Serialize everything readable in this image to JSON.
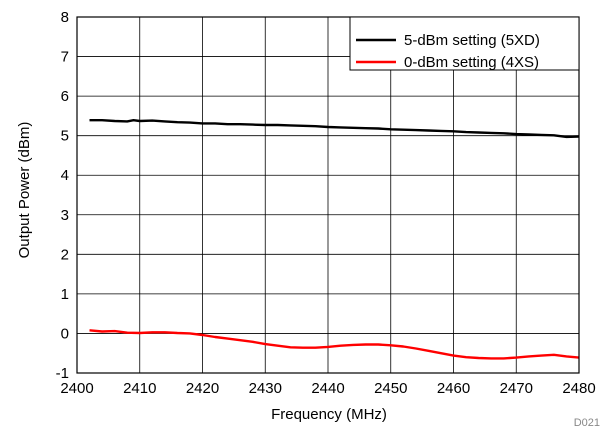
{
  "chart_data": {
    "type": "line",
    "title": "",
    "xlabel": "Frequency (MHz)",
    "ylabel": "Output Power (dBm)",
    "xlim": [
      2400,
      2480
    ],
    "ylim": [
      -1,
      8
    ],
    "x_ticks": [
      2400,
      2410,
      2420,
      2430,
      2440,
      2450,
      2460,
      2470,
      2480
    ],
    "y_ticks": [
      -1,
      0,
      1,
      2,
      3,
      4,
      5,
      6,
      7,
      8
    ],
    "grid": true,
    "legend_position": "top-right",
    "figure_id": "D021",
    "series": [
      {
        "name": "5-dBm setting (5XD)",
        "color": "#000000",
        "x": [
          2402,
          2404,
          2406,
          2408,
          2409,
          2410,
          2412,
          2414,
          2416,
          2418,
          2420,
          2422,
          2424,
          2426,
          2428,
          2430,
          2432,
          2434,
          2436,
          2438,
          2440,
          2442,
          2444,
          2446,
          2448,
          2450,
          2452,
          2454,
          2456,
          2458,
          2460,
          2462,
          2464,
          2466,
          2468,
          2470,
          2472,
          2474,
          2476,
          2478,
          2480
        ],
        "values": [
          5.39,
          5.39,
          5.37,
          5.36,
          5.39,
          5.37,
          5.38,
          5.36,
          5.34,
          5.33,
          5.31,
          5.31,
          5.29,
          5.29,
          5.28,
          5.27,
          5.27,
          5.26,
          5.25,
          5.24,
          5.22,
          5.21,
          5.2,
          5.19,
          5.18,
          5.16,
          5.15,
          5.14,
          5.13,
          5.12,
          5.11,
          5.09,
          5.08,
          5.07,
          5.06,
          5.04,
          5.03,
          5.02,
          5.01,
          4.97,
          4.98
        ]
      },
      {
        "name": "0-dBm setting (4XS)",
        "color": "#ff0000",
        "x": [
          2402,
          2404,
          2406,
          2408,
          2410,
          2412,
          2414,
          2416,
          2418,
          2420,
          2422,
          2424,
          2426,
          2428,
          2430,
          2432,
          2434,
          2436,
          2438,
          2440,
          2442,
          2444,
          2446,
          2448,
          2450,
          2452,
          2454,
          2456,
          2458,
          2460,
          2462,
          2464,
          2466,
          2468,
          2470,
          2472,
          2474,
          2476,
          2478,
          2480
        ],
        "values": [
          0.08,
          0.05,
          0.06,
          0.02,
          0.01,
          0.03,
          0.03,
          0.01,
          0.0,
          -0.04,
          -0.09,
          -0.13,
          -0.17,
          -0.21,
          -0.27,
          -0.31,
          -0.35,
          -0.36,
          -0.36,
          -0.34,
          -0.31,
          -0.29,
          -0.28,
          -0.28,
          -0.3,
          -0.33,
          -0.38,
          -0.44,
          -0.5,
          -0.56,
          -0.6,
          -0.62,
          -0.63,
          -0.63,
          -0.61,
          -0.58,
          -0.56,
          -0.54,
          -0.58,
          -0.61
        ]
      }
    ]
  }
}
